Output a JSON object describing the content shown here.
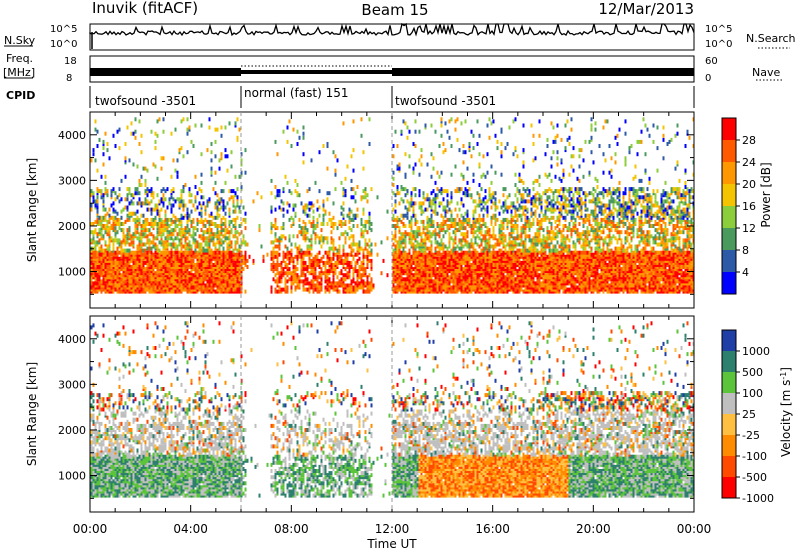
{
  "header": {
    "station": "Inuvik (fitACF)",
    "beam": "Beam 15",
    "date": "12/Mar/2013"
  },
  "panels": {
    "nsky": {
      "label": "N.Sky",
      "ticks": [
        "10^5",
        "10^0"
      ],
      "right_label": "N.Search",
      "right_ticks": [
        "10^5",
        "10^0"
      ]
    },
    "freq": {
      "label_line1": "Freq.",
      "label_line2": "[MHz]",
      "ticks": [
        "18",
        "8"
      ],
      "right_label": "Nave",
      "right_ticks": [
        "60",
        "0"
      ]
    },
    "cpid": {
      "label": "CPID",
      "segments": [
        "twofsound -3501",
        "normal (fast) 151",
        "twofsound -3501"
      ]
    }
  },
  "chart_data": [
    {
      "type": "heatmap",
      "name": "power",
      "ylabel": "Slant Range [km]",
      "xlabel": "Time UT",
      "xlim": [
        0,
        24
      ],
      "ylim": [
        200,
        4500
      ],
      "x_ticks": [
        "00:00",
        "04:00",
        "08:00",
        "12:00",
        "16:00",
        "20:00",
        "00:00"
      ],
      "y_ticks": [
        "1000",
        "2000",
        "3000",
        "4000"
      ],
      "colorbar": {
        "label": "Power [dB]",
        "ticks": [
          "28",
          "24",
          "20",
          "16",
          "12",
          "8",
          "4"
        ],
        "colors": [
          "#ff0000",
          "#ff5a00",
          "#ff9800",
          "#f5c400",
          "#8ccd3c",
          "#4a9a5e",
          "#2d5aa6",
          "#0000ff"
        ]
      },
      "mode_changes_ut": [
        6.0,
        12.0
      ]
    },
    {
      "type": "heatmap",
      "name": "velocity",
      "ylabel": "Slant Range [km]",
      "xlabel": "Time UT",
      "xlim": [
        0,
        24
      ],
      "ylim": [
        200,
        4500
      ],
      "x_ticks": [
        "00:00",
        "04:00",
        "08:00",
        "12:00",
        "16:00",
        "20:00",
        "00:00"
      ],
      "y_ticks": [
        "1000",
        "2000",
        "3000",
        "4000"
      ],
      "colorbar": {
        "label": "Velocity [m s",
        "label_sup": "-1",
        "label_end": "]",
        "ticks": [
          "1000",
          "500",
          "100",
          "25",
          "-25",
          "-100",
          "-500",
          "-1000"
        ],
        "colors": [
          "#1f3ea6",
          "#2d7f6e",
          "#5bc43a",
          "#bfbfbf",
          "#ffbf40",
          "#ff8c00",
          "#ff4a00",
          "#ff0000"
        ]
      },
      "mode_changes_ut": [
        6.0,
        12.0
      ]
    }
  ]
}
